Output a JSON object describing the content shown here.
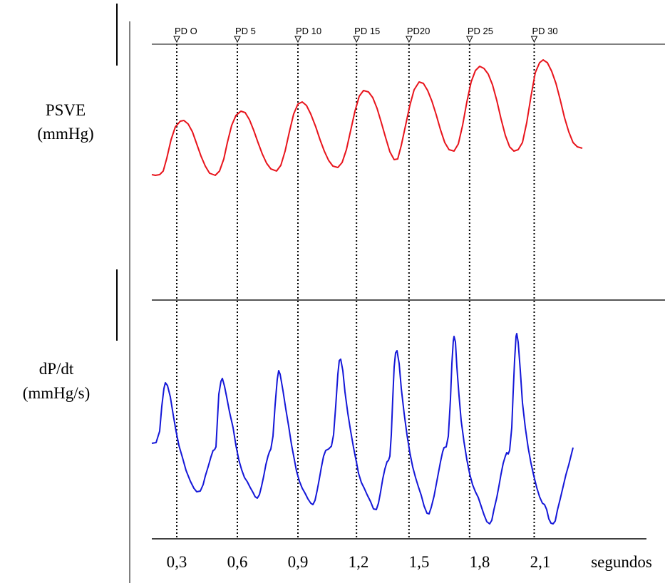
{
  "chart_data": {
    "type": "line",
    "panels": [
      {
        "ylabel_line1": "PSVE",
        "ylabel_line2": "(mmHg)",
        "series_color": "#e8141c"
      },
      {
        "ylabel_line1": "dP/dt",
        "ylabel_line2": "(mmHg/s)",
        "series_color": "#1417d8"
      }
    ],
    "x_unit_label": "segundos",
    "xlim": [
      0.1,
      2.5
    ],
    "xticks": [
      {
        "value": 0.3,
        "label": "0,3"
      },
      {
        "value": 0.6,
        "label": "0,6"
      },
      {
        "value": 0.9,
        "label": "0,9"
      },
      {
        "value": 1.2,
        "label": "1,2"
      },
      {
        "value": 1.5,
        "label": "1,5"
      },
      {
        "value": 1.8,
        "label": "1,8"
      },
      {
        "value": 2.1,
        "label": "2,1"
      }
    ],
    "markers": [
      {
        "label": "PD O",
        "x": 0.3
      },
      {
        "label": "PD 5",
        "x": 0.6
      },
      {
        "label": "PD 10",
        "x": 0.9
      },
      {
        "label": "PD 15",
        "x": 1.19
      },
      {
        "label": "PD20",
        "x": 1.45
      },
      {
        "label": "PD 25",
        "x": 1.75
      },
      {
        "label": "PD 30",
        "x": 2.07
      }
    ]
  }
}
